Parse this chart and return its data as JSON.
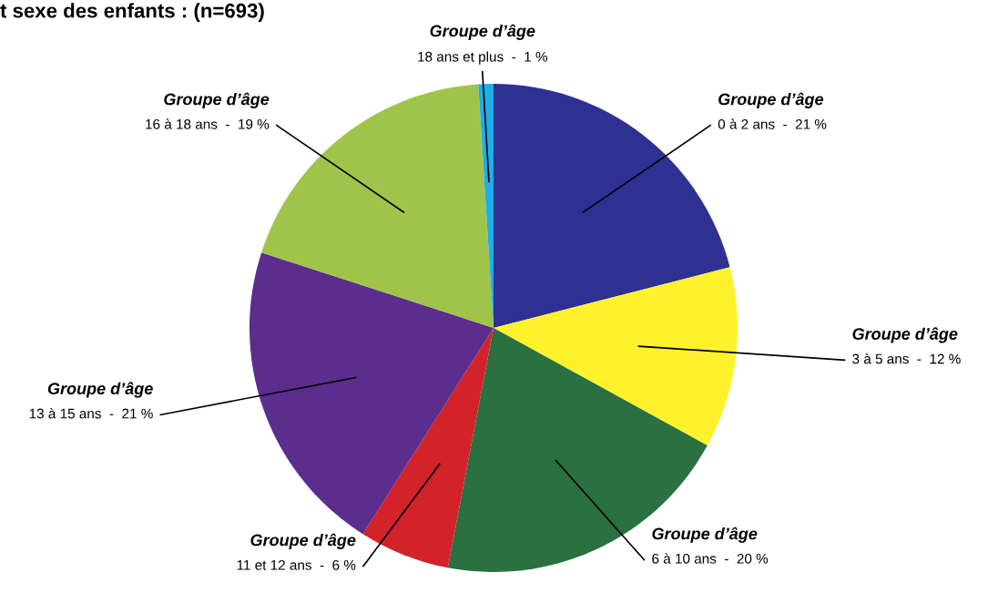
{
  "chart_data": {
    "type": "pie",
    "title": "t sexe des enfants : (n=693)",
    "categories": [
      "Groupe d’âge\n0 à 2 ans",
      "Groupe d’âge\n3 à 5 ans",
      "Groupe d’âge\n6 à 10 ans",
      "Groupe d’âge\n11 et 12 ans",
      "Groupe d’âge\n13 à 15 ans",
      "Groupe d’âge\n16 à 18 ans",
      "Groupe d’âge\n18 ans et plus"
    ],
    "values": [
      21,
      12,
      20,
      6,
      21,
      19,
      1
    ],
    "value_labels": [
      "21 %",
      "12 %",
      "20 %",
      "6 %",
      "21 %",
      "19 %",
      "1 %"
    ],
    "colors": [
      "#2e3192",
      "#fff22d",
      "#2a7040",
      "#d2232a",
      "#5b2d8e",
      "#a0c44a",
      "#1eaee8"
    ]
  }
}
